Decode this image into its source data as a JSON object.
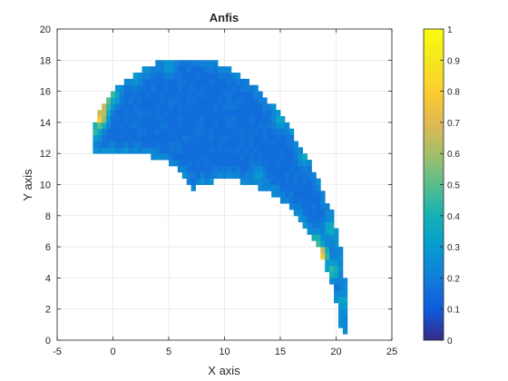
{
  "chart_data": {
    "type": "heatmap",
    "title": "Anfis",
    "xlabel": "X axis",
    "ylabel": "Y axis",
    "xlim": [
      -5,
      25
    ],
    "ylim": [
      0,
      20
    ],
    "xticks": [
      "-5",
      "0",
      "5",
      "10",
      "15",
      "20",
      "25"
    ],
    "yticks": [
      "0",
      "2",
      "4",
      "6",
      "8",
      "10",
      "12",
      "14",
      "16",
      "18",
      "20"
    ],
    "grid": true,
    "colormap": "parula",
    "colorbar": {
      "placement": "right",
      "range": [
        0,
        1
      ],
      "ticks": [
        "0",
        "0.1",
        "0.2",
        "0.3",
        "0.4",
        "0.5",
        "0.6",
        "0.7",
        "0.8",
        "0.9",
        "1"
      ]
    },
    "region": {
      "description_points_outer": [
        [
          -2,
          12.2
        ],
        [
          -1.8,
          13.2
        ],
        [
          -1.5,
          14.2
        ],
        [
          -0.8,
          15.2
        ],
        [
          0.5,
          16.3
        ],
        [
          2,
          17.2
        ],
        [
          4,
          17.9
        ],
        [
          6,
          18.2
        ],
        [
          8,
          18.2
        ],
        [
          10,
          17.7
        ],
        [
          12,
          16.8
        ],
        [
          14,
          15.4
        ],
        [
          16,
          13.5
        ],
        [
          18,
          11.0
        ],
        [
          19.5,
          8.5
        ],
        [
          20.5,
          5.5
        ],
        [
          21.0,
          3.0
        ],
        [
          21.2,
          0.4
        ]
      ],
      "description_points_inner": [
        [
          20.5,
          0.4
        ],
        [
          20.0,
          2.5
        ],
        [
          19.0,
          5.0
        ],
        [
          17.8,
          6.8
        ],
        [
          16.0,
          8.5
        ],
        [
          14.0,
          9.6
        ],
        [
          12.0,
          10.1
        ],
        [
          10.0,
          10.5
        ],
        [
          8.0,
          10.0
        ],
        [
          7.0,
          9.6
        ],
        [
          6.0,
          10.8
        ],
        [
          5.0,
          11.4
        ],
        [
          3.0,
          11.9
        ],
        [
          1.0,
          12.1
        ],
        [
          -2,
          12.2
        ]
      ],
      "base_value": 0.15,
      "hotspots": [
        {
          "x": -1.2,
          "y": 14.3,
          "value": 0.8
        },
        {
          "x": -1.0,
          "y": 14.8,
          "value": 0.75
        },
        {
          "x": -0.6,
          "y": 15.3,
          "value": 0.55
        },
        {
          "x": 0.0,
          "y": 15.8,
          "value": 0.45
        },
        {
          "x": -1.6,
          "y": 13.5,
          "value": 0.45
        },
        {
          "x": 18.6,
          "y": 5.5,
          "value": 0.85
        },
        {
          "x": 18.2,
          "y": 6.3,
          "value": 0.5
        },
        {
          "x": 19.7,
          "y": 4.5,
          "value": 0.45
        },
        {
          "x": 19.5,
          "y": 7.2,
          "value": 0.4
        },
        {
          "x": 15.0,
          "y": 14.2,
          "value": 0.35
        },
        {
          "x": 17.2,
          "y": 11.8,
          "value": 0.35
        },
        {
          "x": 5.0,
          "y": 17.6,
          "value": 0.3
        },
        {
          "x": 20.6,
          "y": 2.5,
          "value": 0.35
        },
        {
          "x": 13.0,
          "y": 10.6,
          "value": 0.3
        },
        {
          "x": 2.0,
          "y": 16.9,
          "value": 0.3
        }
      ]
    }
  }
}
